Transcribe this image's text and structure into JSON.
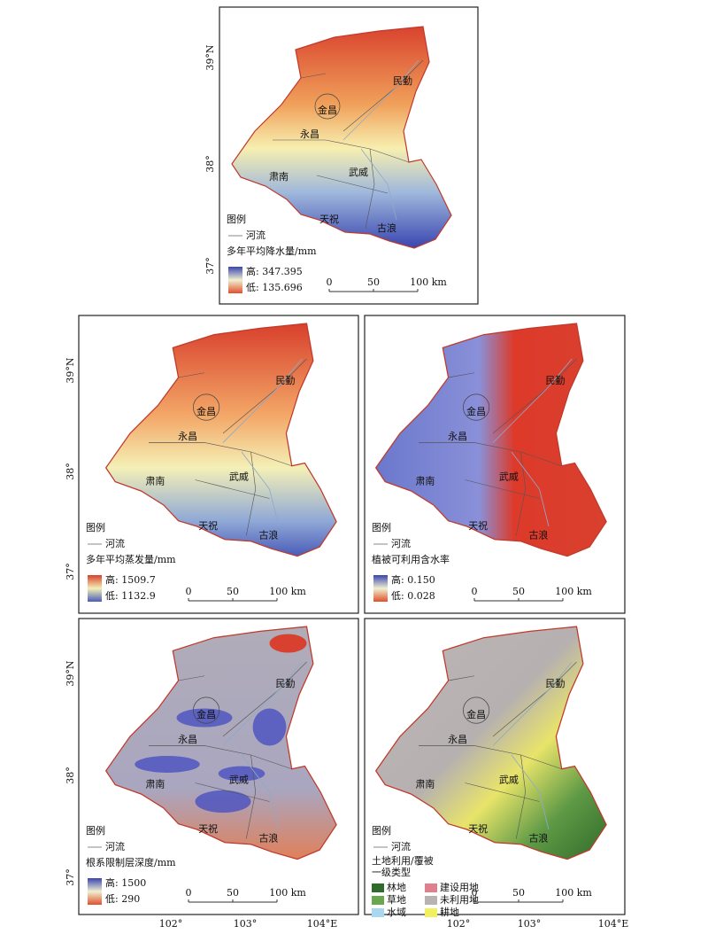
{
  "latitude_labels": [
    "39°N",
    "38°",
    "37°"
  ],
  "longitude_labels": [
    "102°",
    "103°",
    "104°E"
  ],
  "place_names": [
    "民勤",
    "金昌",
    "永昌",
    "肃南",
    "武威",
    "天祝",
    "古浪"
  ],
  "legend": {
    "title": "图例",
    "river": "河流"
  },
  "scale_bar": [
    "0",
    "50",
    "100 km"
  ],
  "panels": [
    {
      "title": "多年平均降水量/mm",
      "high": "高: 347.395",
      "low": "低: 135.696"
    },
    {
      "title": "多年平均蒸发量/mm",
      "high": "高: 1509.7",
      "low": "低: 1132.9"
    },
    {
      "title": "植被可利用含水率",
      "high": "高: 0.150",
      "low": "低: 0.028"
    },
    {
      "title": "根系限制层深度/mm",
      "high": "高: 1500",
      "low": "低: 290"
    },
    {
      "title": [
        "土地利用/覆被",
        "一级类型"
      ],
      "classes": [
        {
          "name": "林地",
          "color": "#2f6b2a"
        },
        {
          "name": "建设用地",
          "color": "#e0808f"
        },
        {
          "name": "草地",
          "color": "#6aa84f"
        },
        {
          "name": "未利用地",
          "color": "#b9b2b2"
        },
        {
          "name": "水域",
          "color": "#a8d8f0"
        },
        {
          "name": "耕地",
          "color": "#f2f060"
        }
      ]
    }
  ]
}
